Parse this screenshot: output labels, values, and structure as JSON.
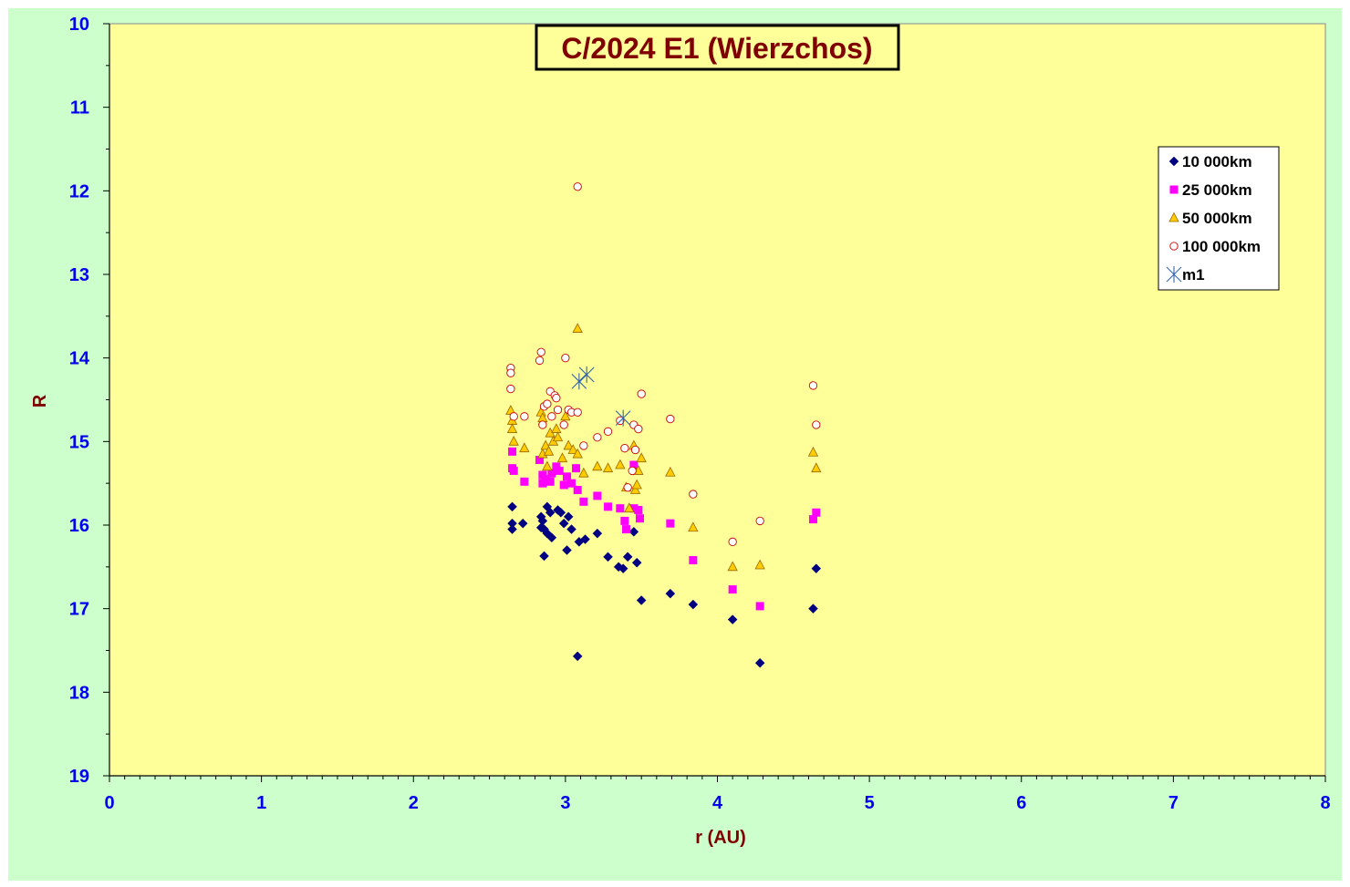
{
  "chart_data": {
    "type": "scatter",
    "title": "C/2024 E1 (Wierzchos)",
    "xlabel": "r (AU)",
    "ylabel": "R",
    "xlim": [
      0,
      8
    ],
    "ylim": [
      10,
      19
    ],
    "y_inverted": true,
    "x_ticks": [
      "0",
      "1",
      "2",
      "3",
      "4",
      "5",
      "6",
      "7",
      "8"
    ],
    "y_ticks": [
      "10",
      "11",
      "12",
      "13",
      "14",
      "15",
      "16",
      "17",
      "18",
      "19"
    ],
    "grid": false,
    "legend_position": "top-right",
    "colors": {
      "outer_background": "#ccffcc",
      "plot_background": "#ffff99",
      "title_color": "#800000",
      "tick_color": "#0000ee"
    },
    "series": [
      {
        "name": "10 000km",
        "marker": "diamond",
        "color": "#000080",
        "points": [
          [
            2.65,
            15.78
          ],
          [
            2.65,
            15.98
          ],
          [
            2.65,
            16.05
          ],
          [
            2.72,
            15.98
          ],
          [
            2.84,
            15.9
          ],
          [
            2.84,
            16.03
          ],
          [
            2.85,
            15.95
          ],
          [
            2.86,
            16.05
          ],
          [
            2.86,
            16.37
          ],
          [
            2.88,
            15.78
          ],
          [
            2.88,
            16.1
          ],
          [
            2.9,
            15.85
          ],
          [
            2.91,
            16.15
          ],
          [
            2.95,
            15.82
          ],
          [
            2.97,
            15.85
          ],
          [
            2.99,
            15.98
          ],
          [
            3.01,
            16.3
          ],
          [
            3.02,
            15.9
          ],
          [
            3.04,
            16.05
          ],
          [
            3.08,
            17.57
          ],
          [
            3.09,
            16.2
          ],
          [
            3.13,
            16.17
          ],
          [
            3.21,
            16.1
          ],
          [
            3.28,
            16.38
          ],
          [
            3.35,
            16.5
          ],
          [
            3.38,
            16.52
          ],
          [
            3.41,
            16.38
          ],
          [
            3.45,
            16.08
          ],
          [
            3.47,
            16.45
          ],
          [
            3.5,
            16.9
          ],
          [
            3.69,
            16.82
          ],
          [
            3.84,
            16.95
          ],
          [
            4.1,
            17.13
          ],
          [
            4.28,
            17.65
          ],
          [
            4.63,
            17.0
          ],
          [
            4.65,
            16.52
          ]
        ]
      },
      {
        "name": "25 000km",
        "marker": "square",
        "color": "#ff00ff",
        "points": [
          [
            2.65,
            15.12
          ],
          [
            2.65,
            15.32
          ],
          [
            2.66,
            15.35
          ],
          [
            2.73,
            15.48
          ],
          [
            2.83,
            15.22
          ],
          [
            2.85,
            15.4
          ],
          [
            2.85,
            15.5
          ],
          [
            2.87,
            15.45
          ],
          [
            2.9,
            15.48
          ],
          [
            2.91,
            15.38
          ],
          [
            2.94,
            15.3
          ],
          [
            2.96,
            15.35
          ],
          [
            2.99,
            15.52
          ],
          [
            3.01,
            15.42
          ],
          [
            3.04,
            15.5
          ],
          [
            3.07,
            15.32
          ],
          [
            3.08,
            15.58
          ],
          [
            3.12,
            15.72
          ],
          [
            3.21,
            15.65
          ],
          [
            3.28,
            15.78
          ],
          [
            3.36,
            15.8
          ],
          [
            3.39,
            15.95
          ],
          [
            3.4,
            16.05
          ],
          [
            3.45,
            15.28
          ],
          [
            3.45,
            15.8
          ],
          [
            3.48,
            15.82
          ],
          [
            3.49,
            15.92
          ],
          [
            3.69,
            15.98
          ],
          [
            3.84,
            16.42
          ],
          [
            4.1,
            16.77
          ],
          [
            4.28,
            16.97
          ],
          [
            4.63,
            15.93
          ],
          [
            4.65,
            15.85
          ]
        ]
      },
      {
        "name": "50 000km",
        "marker": "triangle",
        "color": "#ffcc00",
        "stroke": "#996600",
        "points": [
          [
            2.64,
            14.63
          ],
          [
            2.65,
            14.75
          ],
          [
            2.65,
            14.85
          ],
          [
            2.66,
            15.0
          ],
          [
            2.73,
            15.08
          ],
          [
            2.84,
            14.65
          ],
          [
            2.85,
            14.72
          ],
          [
            2.85,
            15.15
          ],
          [
            2.87,
            15.05
          ],
          [
            2.88,
            15.3
          ],
          [
            2.89,
            15.12
          ],
          [
            2.9,
            14.9
          ],
          [
            2.92,
            15.0
          ],
          [
            2.94,
            14.85
          ],
          [
            2.95,
            14.95
          ],
          [
            2.98,
            15.2
          ],
          [
            3.0,
            14.7
          ],
          [
            3.02,
            15.05
          ],
          [
            3.05,
            15.1
          ],
          [
            3.08,
            13.65
          ],
          [
            3.08,
            15.15
          ],
          [
            3.12,
            15.38
          ],
          [
            3.21,
            15.3
          ],
          [
            3.28,
            15.32
          ],
          [
            3.36,
            15.28
          ],
          [
            3.4,
            15.55
          ],
          [
            3.42,
            15.8
          ],
          [
            3.45,
            15.05
          ],
          [
            3.46,
            15.58
          ],
          [
            3.47,
            15.52
          ],
          [
            3.48,
            15.35
          ],
          [
            3.5,
            15.2
          ],
          [
            3.69,
            15.37
          ],
          [
            3.84,
            16.03
          ],
          [
            4.1,
            16.5
          ],
          [
            4.28,
            16.48
          ],
          [
            4.63,
            15.13
          ],
          [
            4.65,
            15.32
          ]
        ]
      },
      {
        "name": "100 000km",
        "marker": "circle",
        "color": "#ffffff",
        "stroke": "#cc0000",
        "points": [
          [
            2.64,
            14.12
          ],
          [
            2.64,
            14.18
          ],
          [
            2.64,
            14.37
          ],
          [
            2.66,
            14.7
          ],
          [
            2.73,
            14.7
          ],
          [
            2.83,
            14.03
          ],
          [
            2.84,
            13.93
          ],
          [
            2.85,
            14.8
          ],
          [
            2.86,
            14.58
          ],
          [
            2.88,
            14.55
          ],
          [
            2.9,
            14.4
          ],
          [
            2.91,
            14.7
          ],
          [
            2.93,
            14.45
          ],
          [
            2.94,
            14.48
          ],
          [
            2.95,
            14.62
          ],
          [
            2.99,
            14.8
          ],
          [
            3.0,
            14.0
          ],
          [
            3.02,
            14.62
          ],
          [
            3.04,
            14.65
          ],
          [
            3.08,
            11.95
          ],
          [
            3.08,
            14.65
          ],
          [
            3.12,
            15.05
          ],
          [
            3.21,
            14.95
          ],
          [
            3.28,
            14.88
          ],
          [
            3.36,
            14.75
          ],
          [
            3.39,
            15.08
          ],
          [
            3.41,
            15.55
          ],
          [
            3.44,
            15.35
          ],
          [
            3.45,
            14.8
          ],
          [
            3.46,
            15.1
          ],
          [
            3.48,
            14.85
          ],
          [
            3.5,
            14.43
          ],
          [
            3.69,
            14.73
          ],
          [
            3.84,
            15.63
          ],
          [
            4.1,
            16.2
          ],
          [
            4.28,
            15.95
          ],
          [
            4.63,
            14.33
          ],
          [
            4.65,
            14.8
          ]
        ]
      },
      {
        "name": "m1",
        "marker": "asterisk",
        "color": "#3366aa",
        "points": [
          [
            3.09,
            14.28
          ],
          [
            3.14,
            14.2
          ],
          [
            3.38,
            14.72
          ]
        ]
      }
    ]
  }
}
